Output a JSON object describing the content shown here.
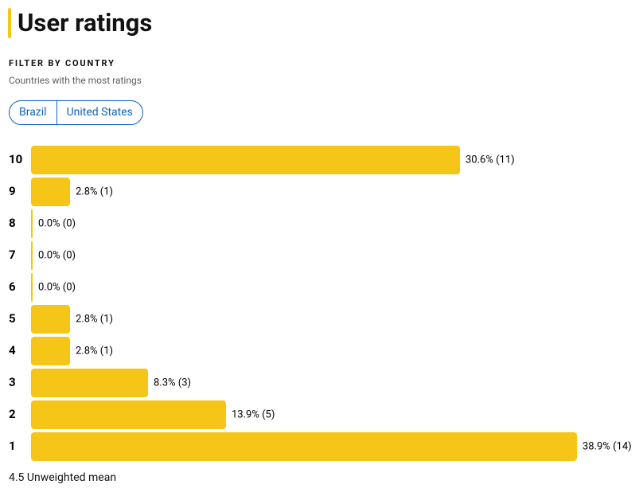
{
  "header": {
    "title": "User ratings"
  },
  "filter": {
    "heading": "FILTER BY COUNTRY",
    "subtitle": "Countries with the most ratings",
    "options": [
      "Brazil",
      "United States"
    ]
  },
  "chart_data": {
    "type": "bar",
    "orientation": "horizontal",
    "color": "#f5c518",
    "categories": [
      "10",
      "9",
      "8",
      "7",
      "6",
      "5",
      "4",
      "3",
      "2",
      "1"
    ],
    "values": [
      11,
      1,
      0,
      0,
      0,
      1,
      1,
      3,
      5,
      14
    ],
    "value_labels": [
      "30.6% (11)",
      "2.8% (1)",
      "0.0% (0)",
      "0.0% (0)",
      "0.0% (0)",
      "2.8% (1)",
      "2.8% (1)",
      "8.3% (3)",
      "13.9% (5)",
      "38.9% (14)"
    ]
  },
  "footer": "4.5 Unweighted mean"
}
